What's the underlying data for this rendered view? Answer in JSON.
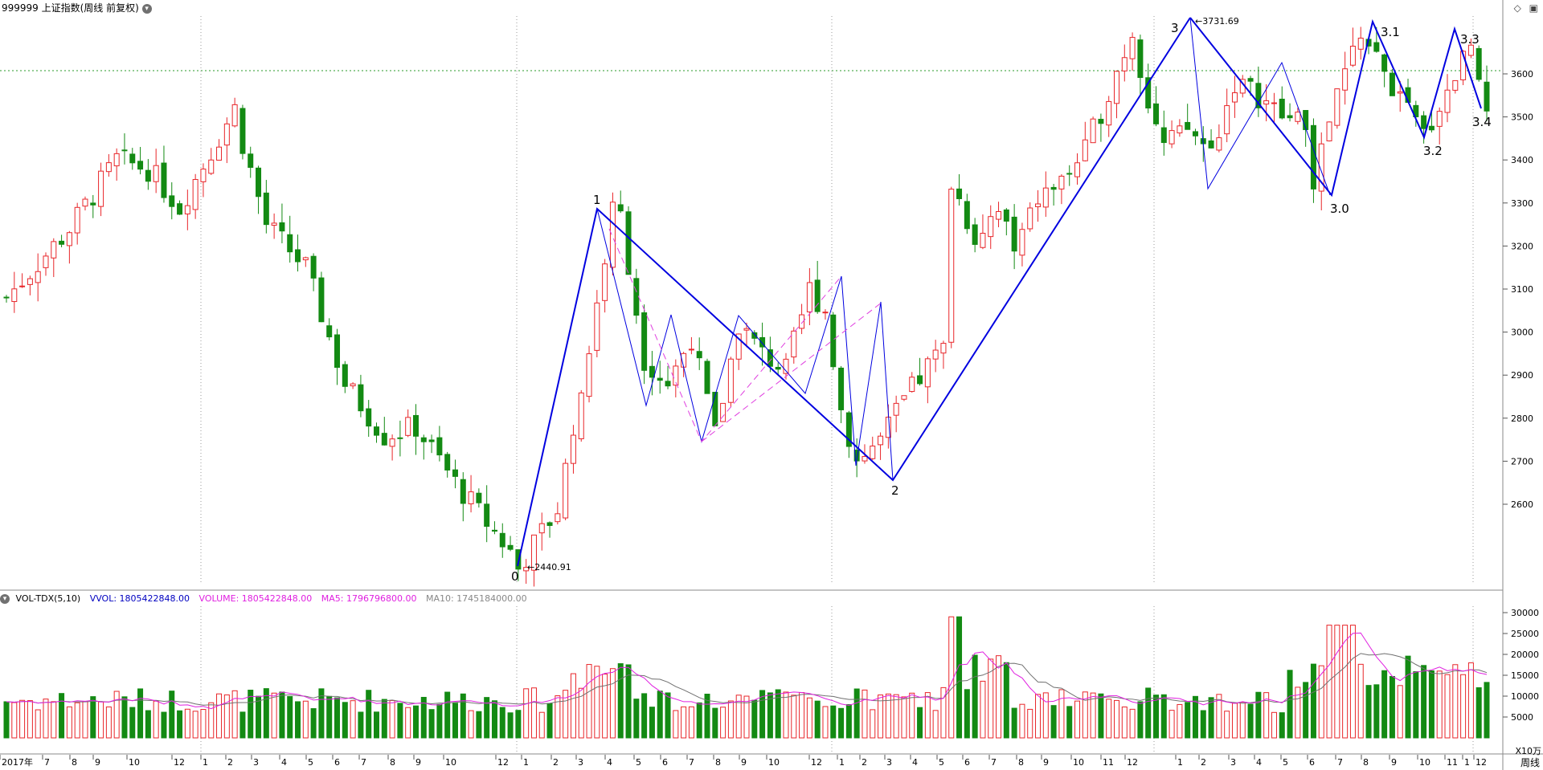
{
  "header": {
    "title": "999999 上证指数(周线 前复权)"
  },
  "volume_header": {
    "name": "VOL-TDX(5,10)",
    "vvol": "VVOL: 1805422848.00",
    "volume": "VOLUME: 1805422848.00",
    "ma5": "MA5: 1796796800.00",
    "ma10": "MA10: 1745184000.00"
  },
  "price_axis": [
    "3600",
    "3500",
    "3400",
    "3300",
    "3200",
    "3100",
    "3000",
    "2900",
    "2800",
    "2700",
    "2600"
  ],
  "volume_axis": [
    "30000",
    "25000",
    "20000",
    "15000",
    "10000",
    "5000"
  ],
  "volume_unit": "X10万",
  "period_label": "周线",
  "time_axis": [
    "2017年",
    "7",
    "8",
    "9",
    "10",
    "12",
    "1",
    "2",
    "3",
    "4",
    "5",
    "6",
    "7",
    "8",
    "9",
    "10",
    "12",
    "1",
    "2",
    "3",
    "4",
    "5",
    "6",
    "7",
    "8",
    "9",
    "10",
    "12",
    "1",
    "2",
    "3",
    "4",
    "5",
    "6",
    "7",
    "8",
    "9",
    "10",
    "11",
    "12",
    "1",
    "2",
    "3",
    "4",
    "5",
    "6",
    "7",
    "8",
    "9",
    "10",
    "11",
    "12",
    "1"
  ],
  "wave_labels": [
    "0",
    "1",
    "2",
    "3",
    "3.0",
    "3.1",
    "3.2",
    "3.3",
    "3.4"
  ],
  "annotations": {
    "low_value": "2440.91",
    "high_value": "3731.69"
  },
  "colors": {
    "up": "#e8262a",
    "down": "#138a13",
    "wave_major": "#0000e0",
    "wave_minor": "#e040e0",
    "ma5": "#e020e0",
    "ma10": "#707070",
    "grid": "#9a9a9a",
    "ref_line": "#2a9a2a"
  },
  "icons": {
    "header_menu": "chevron-down-icon",
    "volume_menu": "chevron-down-icon",
    "top_right_1": "diamond-icon",
    "top_right_2": "window-icon"
  }
}
